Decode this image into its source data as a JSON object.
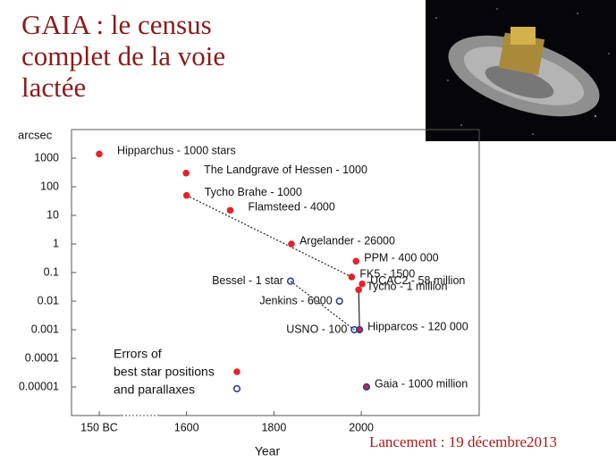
{
  "slide_title": "GAIA : le census complet de la voie lactée",
  "caption": "Lancement : 19 décembre2013",
  "chart_data": {
    "type": "scatter",
    "ylabel": "arcsec",
    "xlabel": "Year",
    "log_y": true,
    "xlim": [
      -700,
      2270
    ],
    "xticks": [
      {
        "value": -150,
        "label": "150 BC"
      },
      1600,
      1800,
      2000
    ],
    "ylim": [
      1e-06,
      10000
    ],
    "yticks": [
      1000,
      100,
      10,
      1,
      0.1,
      0.01,
      0.001,
      0.0001,
      1e-05
    ],
    "legend_title": "Errors of",
    "series": [
      {
        "name": "best star positions",
        "color": "#e3232b",
        "filled": true,
        "x": [
          -150,
          1590,
          1600,
          1700,
          1840,
          1988,
          1978,
          2002,
          1994,
          1996,
          2012
        ],
        "values": [
          1400,
          300,
          50,
          15,
          1,
          0.25,
          0.07,
          0.04,
          0.025,
          0.001,
          1e-05
        ],
        "labels": [
          "Hipparchus  - 1000 stars",
          "The Landgrave of Hessen  -  1000",
          "Tycho Brahe  -  1000",
          "Flamsteed  -  4000",
          "Argelander - 26000",
          "PPM - 400 000",
          "FK5 - 1500",
          "UCAC2 - 58 million",
          "Tycho - 1 million",
          "Hipparcos - 120 000",
          "Gaia - 1000 million"
        ]
      },
      {
        "name": "and parallaxes",
        "color": "#2b3f9a",
        "filled": false,
        "x": [
          1838,
          1950,
          1984,
          1996,
          2012
        ],
        "values": [
          0.05,
          0.01,
          0.001,
          0.001,
          1e-05
        ],
        "labels": [
          "Bessel - 1 star",
          "Jenkins - 6000",
          "USNO - 100",
          null,
          null
        ]
      }
    ]
  }
}
